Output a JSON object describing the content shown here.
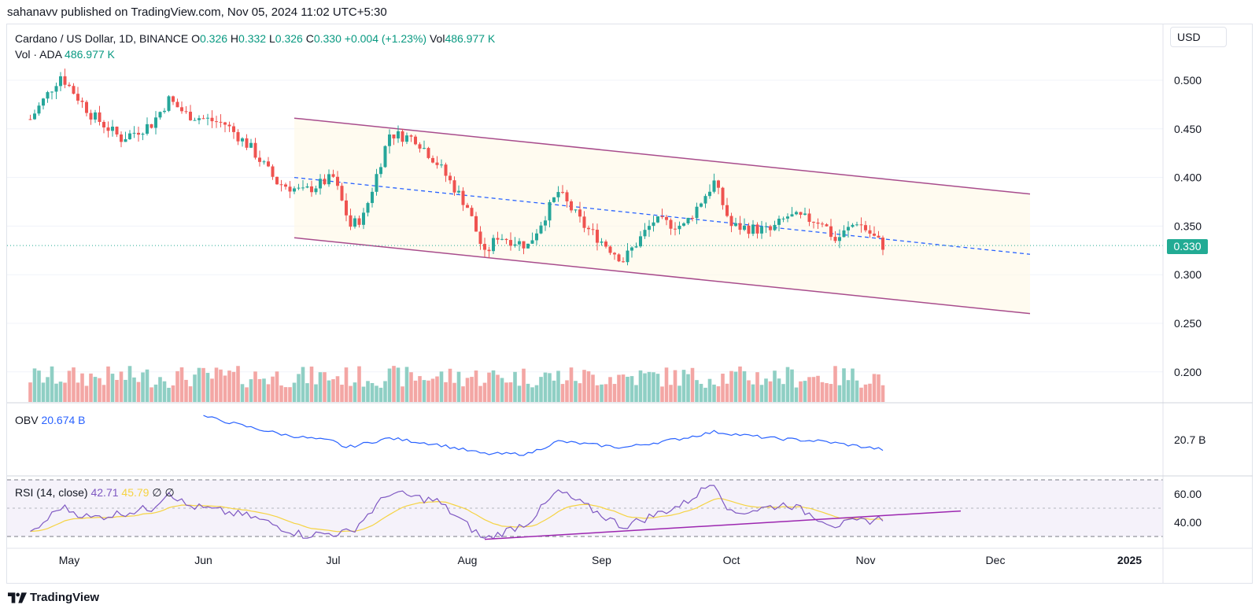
{
  "header": {
    "published": "sahanavv published on TradingView.com, Nov 05, 2024 11:02 UTC+5:30"
  },
  "legend": {
    "symbol": "Cardano / US Dollar, 1D, BINANCE",
    "o_label": "O",
    "o_value": "0.326",
    "h_label": "H",
    "h_value": "0.332",
    "l_label": "L",
    "l_value": "0.326",
    "c_label": "C",
    "c_value": "0.330",
    "change": "+0.004 (+1.23%)",
    "vol_label": "Vol",
    "vol_value": "486.977 K",
    "vol_line_label": "Vol · ADA",
    "vol_line_value": "486.977 K"
  },
  "obv": {
    "label": "OBV",
    "value": "20.674 B",
    "axis_label": "20.7 B"
  },
  "rsi": {
    "label": "RSI (14, close)",
    "value": "42.71",
    "ma_value": "45.79",
    "extra1": "∅",
    "extra2": "∅"
  },
  "currency_button": "USD",
  "last_price": "0.330",
  "footer": {
    "brand": "TradingView"
  },
  "colors": {
    "up": "#26a69a",
    "down": "#ef5350",
    "channel": "#a84c8c",
    "mid": "#2962ff",
    "obv": "#2962ff",
    "rsi": "#7e57c2",
    "rsi_ma": "#f5d342"
  },
  "chart_data": {
    "type": "candlestick",
    "price_axis": {
      "ticks": [
        "0.500",
        "0.450",
        "0.400",
        "0.350",
        "0.300",
        "0.250",
        "0.200"
      ]
    },
    "time_axis": [
      "May",
      "Jun",
      "Jul",
      "Aug",
      "Sep",
      "Oct",
      "Nov",
      "Dec",
      "2025"
    ],
    "rsi_axis": [
      "60.00",
      "40.00"
    ],
    "channel": {
      "upper": {
        "from": [
          "2024-06-22",
          0.461
        ],
        "to": [
          "2024-12-09",
          0.383
        ]
      },
      "lower": {
        "from": [
          "2024-06-22",
          0.338
        ],
        "to": [
          "2024-12-09",
          0.26
        ]
      },
      "mid": {
        "from": [
          "2024-06-22",
          0.4
        ],
        "to": [
          "2024-12-09",
          0.321
        ]
      }
    },
    "series_close_anchors": [
      [
        "2024-04-22",
        0.46
      ],
      [
        "2024-04-29",
        0.505
      ],
      [
        "2024-05-06",
        0.465
      ],
      [
        "2024-05-13",
        0.44
      ],
      [
        "2024-05-20",
        0.455
      ],
      [
        "2024-05-24",
        0.48
      ],
      [
        "2024-05-28",
        0.465
      ],
      [
        "2024-06-06",
        0.455
      ],
      [
        "2024-06-12",
        0.43
      ],
      [
        "2024-06-18",
        0.395
      ],
      [
        "2024-06-24",
        0.385
      ],
      [
        "2024-07-01",
        0.4
      ],
      [
        "2024-07-05",
        0.35
      ],
      [
        "2024-07-08",
        0.36
      ],
      [
        "2024-07-14",
        0.445
      ],
      [
        "2024-07-20",
        0.44
      ],
      [
        "2024-07-25",
        0.415
      ],
      [
        "2024-08-01",
        0.37
      ],
      [
        "2024-08-05",
        0.32
      ],
      [
        "2024-08-08",
        0.34
      ],
      [
        "2024-08-15",
        0.33
      ],
      [
        "2024-08-22",
        0.385
      ],
      [
        "2024-08-28",
        0.35
      ],
      [
        "2024-09-06",
        0.315
      ],
      [
        "2024-09-13",
        0.355
      ],
      [
        "2024-09-20",
        0.35
      ],
      [
        "2024-09-27",
        0.395
      ],
      [
        "2024-10-01",
        0.35
      ],
      [
        "2024-10-10",
        0.345
      ],
      [
        "2024-10-14",
        0.36
      ],
      [
        "2024-10-22",
        0.355
      ],
      [
        "2024-10-25",
        0.335
      ],
      [
        "2024-10-30",
        0.355
      ],
      [
        "2024-11-05",
        0.33
      ]
    ],
    "obv_anchors": [
      [
        "2024-06-01",
        20.78
      ],
      [
        "2024-06-10",
        20.75
      ],
      [
        "2024-06-20",
        20.72
      ],
      [
        "2024-07-01",
        20.7
      ],
      [
        "2024-07-04",
        20.68
      ],
      [
        "2024-07-14",
        20.71
      ],
      [
        "2024-07-25",
        20.69
      ],
      [
        "2024-08-05",
        20.66
      ],
      [
        "2024-08-15",
        20.66
      ],
      [
        "2024-08-22",
        20.7
      ],
      [
        "2024-09-06",
        20.68
      ],
      [
        "2024-09-20",
        20.71
      ],
      [
        "2024-09-27",
        20.73
      ],
      [
        "2024-10-10",
        20.71
      ],
      [
        "2024-10-22",
        20.7
      ],
      [
        "2024-11-05",
        20.674
      ]
    ],
    "rsi_anchors": [
      [
        "2024-04-22",
        31
      ],
      [
        "2024-04-29",
        51
      ],
      [
        "2024-05-06",
        43
      ],
      [
        "2024-05-20",
        50
      ],
      [
        "2024-05-24",
        62
      ],
      [
        "2024-05-28",
        52
      ],
      [
        "2024-06-12",
        44
      ],
      [
        "2024-06-24",
        31
      ],
      [
        "2024-07-05",
        33
      ],
      [
        "2024-07-14",
        61
      ],
      [
        "2024-07-25",
        55
      ],
      [
        "2024-08-05",
        28
      ],
      [
        "2024-08-15",
        40
      ],
      [
        "2024-08-22",
        62
      ],
      [
        "2024-09-06",
        37
      ],
      [
        "2024-09-20",
        53
      ],
      [
        "2024-09-27",
        69
      ],
      [
        "2024-10-01",
        46
      ],
      [
        "2024-10-14",
        53
      ],
      [
        "2024-10-25",
        38
      ],
      [
        "2024-11-05",
        42.71
      ]
    ],
    "rsi_support": {
      "from": [
        "2024-08-05",
        28
      ],
      "to": [
        "2024-11-23",
        48
      ]
    }
  }
}
